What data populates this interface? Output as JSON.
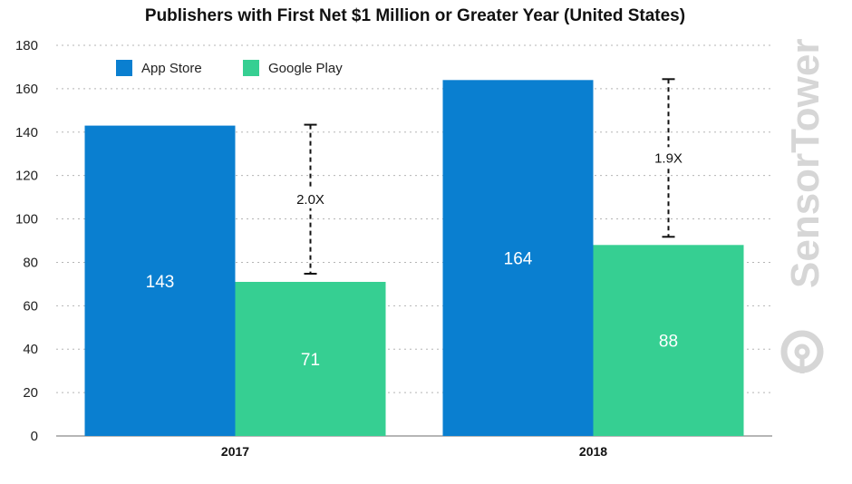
{
  "chart_data": {
    "type": "bar",
    "title": "Publishers with First Net $1 Million or Greater Year (United States)",
    "categories": [
      "2017",
      "2018"
    ],
    "series": [
      {
        "name": "App Store",
        "values": [
          143,
          164
        ],
        "color": "#0a7fd0"
      },
      {
        "name": "Google Play",
        "values": [
          71,
          88
        ],
        "color": "#36cf92"
      }
    ],
    "ylim": [
      0,
      180
    ],
    "yticks": [
      0,
      20,
      40,
      60,
      80,
      100,
      120,
      140,
      160,
      180
    ],
    "grid": true,
    "legend": "top-left",
    "annotations": [
      {
        "category": "2017",
        "label": "2.0X",
        "from": 71,
        "to": 143
      },
      {
        "category": "2018",
        "label": "1.9X",
        "from": 88,
        "to": 164
      }
    ]
  },
  "watermark": {
    "text": "SensorTower",
    "icon": "sensor-tower-logo-icon"
  }
}
